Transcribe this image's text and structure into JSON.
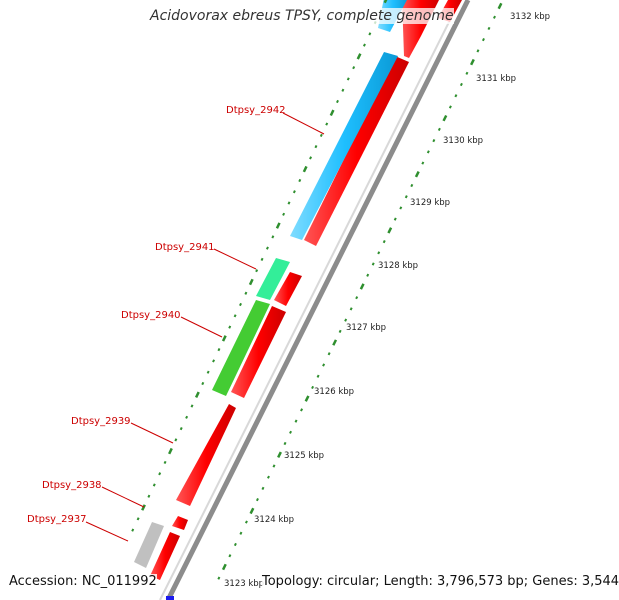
{
  "map": {
    "title": "Acidovorax ebreus TPSY, complete genome",
    "accession_label": "Accession: NC_011992",
    "topology_label": "Topology: circular; Length: 3,796,573 bp; Genes: 3,544"
  },
  "colors": {
    "cds": "#ff0000",
    "cds_blue": "#1fbfff",
    "cds_teal": "#33ee99",
    "cds_green": "#44cc33",
    "cds_gray": "#c0c0c0",
    "backbone": "#8c8c8c",
    "tick": "#2f8f2f",
    "label_red": "#cc0000"
  },
  "genes": [
    {
      "name": "Dtpsy_2942"
    },
    {
      "name": "Dtpsy_2941"
    },
    {
      "name": "Dtpsy_2940"
    },
    {
      "name": "Dtpsy_2939"
    },
    {
      "name": "Dtpsy_2938"
    },
    {
      "name": "Dtpsy_2937"
    }
  ],
  "ticks": [
    {
      "label": "3132 kbp"
    },
    {
      "label": "3131 kbp"
    },
    {
      "label": "3130 kbp"
    },
    {
      "label": "3129 kbp"
    },
    {
      "label": "3128 kbp"
    },
    {
      "label": "3127 kbp"
    },
    {
      "label": "3126 kbp"
    },
    {
      "label": "3125 kbp"
    },
    {
      "label": "3124 kbp"
    },
    {
      "label": "3123 kbp"
    }
  ]
}
